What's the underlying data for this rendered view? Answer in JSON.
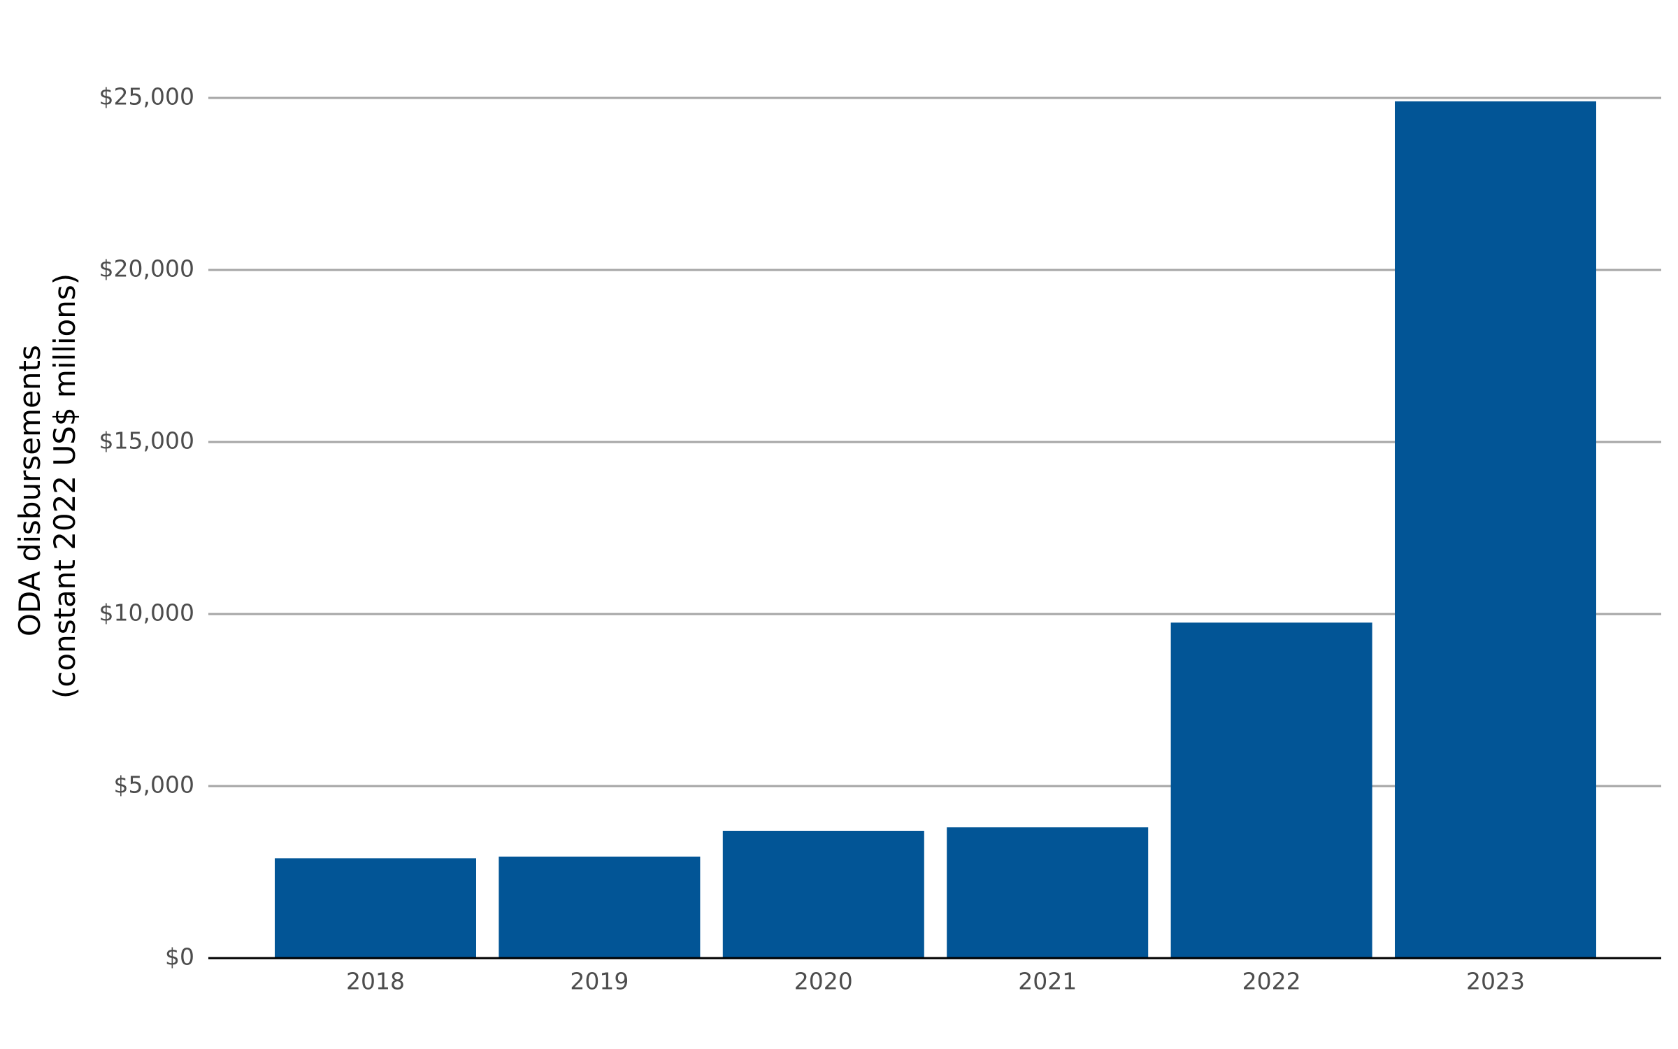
{
  "chart_data": {
    "type": "bar",
    "title": "",
    "xlabel": "",
    "ylabel": [
      "ODA disbursements",
      "(constant 2022 US$ millions)"
    ],
    "categories": [
      "2018",
      "2019",
      "2020",
      "2021",
      "2022",
      "2023"
    ],
    "values": [
      2900,
      2950,
      3700,
      3800,
      9750,
      24900
    ],
    "ylim": [
      0,
      25000
    ],
    "yticks": [
      0,
      5000,
      10000,
      15000,
      20000,
      25000
    ],
    "ytick_labels": [
      "$0",
      "$5,000",
      "$10,000",
      "$15,000",
      "$20,000",
      "$25,000"
    ],
    "grid": true,
    "legend": "none"
  },
  "colors": {
    "bar": "#025596",
    "grid": "#a6a6a6",
    "baseline": "#000000",
    "tick_text": "#4d4d4d"
  }
}
